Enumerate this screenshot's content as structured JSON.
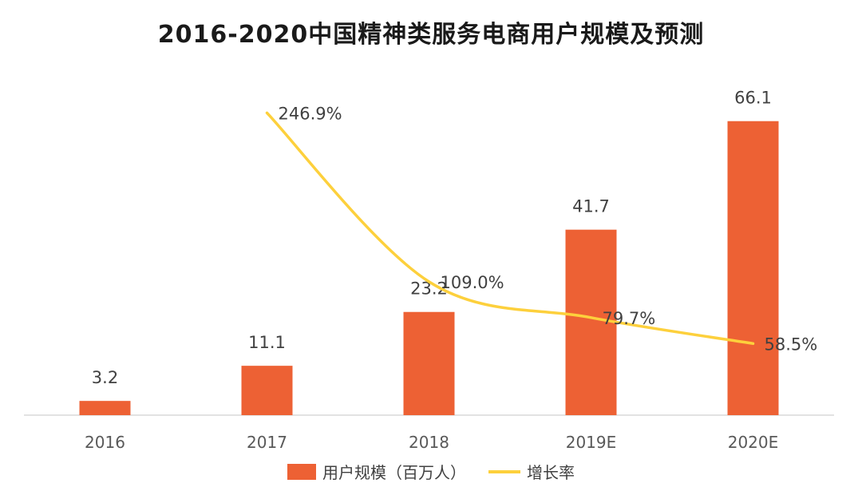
{
  "chart_data": {
    "type": "bar+line",
    "title": "2016-2020中国精神类服务电商用户规模及预测",
    "categories": [
      "2016",
      "2017",
      "2018",
      "2019E",
      "2020E"
    ],
    "series": [
      {
        "name": "用户规模（百万人）",
        "type": "bar",
        "values": [
          3.2,
          11.1,
          23.2,
          41.7,
          66.1
        ],
        "labels": [
          "3.2",
          "11.1",
          "23.2",
          "41.7",
          "66.1"
        ]
      },
      {
        "name": "增长率",
        "type": "line",
        "values": [
          null,
          246.9,
          109.0,
          79.7,
          58.5
        ],
        "labels": [
          "",
          "246.9%",
          "109.0%",
          "79.7%",
          "58.5%"
        ]
      }
    ],
    "colors": {
      "bar": "#ED6134",
      "line": "#FDD03C",
      "axis": "#d9d9d9"
    },
    "ylim_bar": [
      0,
      70
    ],
    "ylim_line": [
      0,
      300
    ],
    "grid": false,
    "legend_position": "bottom"
  }
}
